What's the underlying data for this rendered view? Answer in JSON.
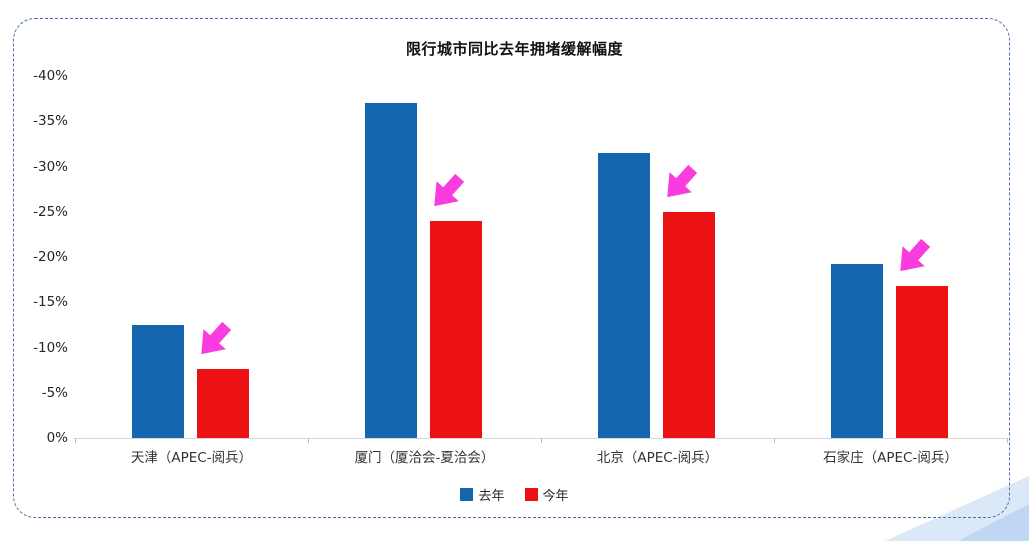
{
  "chart_data": {
    "type": "bar",
    "title": "限行城市同比去年拥堵缓解幅度",
    "categories": [
      "天津（APEC-阅兵）",
      "厦门（厦洽会-夏洽会）",
      "北京（APEC-阅兵）",
      "石家庄（APEC-阅兵）"
    ],
    "series": [
      {
        "name": "去年",
        "color": "#1466ae",
        "values": [
          -12.5,
          -37,
          -31.5,
          -19.2
        ]
      },
      {
        "name": "今年",
        "color": "#ec1113",
        "values": [
          -7.6,
          -24,
          -25,
          -16.8
        ]
      }
    ],
    "y_axis": {
      "min": 0,
      "max": -40,
      "step": -5,
      "inverted": true,
      "ticks": [
        "-40%",
        "-35%",
        "-30%",
        "-25%",
        "-20%",
        "-15%",
        "-10%",
        "-5%",
        "0%"
      ]
    },
    "xlabel": "",
    "ylabel": "",
    "grid": false,
    "legend_position": "bottom",
    "annotations": [
      {
        "type": "block-arrow-down-right",
        "color": "#fa3bdd",
        "placement": "above-this-year-bar",
        "per_category": true
      }
    ]
  },
  "decorations": {
    "border_color": "#4a6fa5",
    "border_style": "dashed-rounded",
    "swoosh_colors": [
      "#dae8f8",
      "#bfd7f2"
    ]
  }
}
